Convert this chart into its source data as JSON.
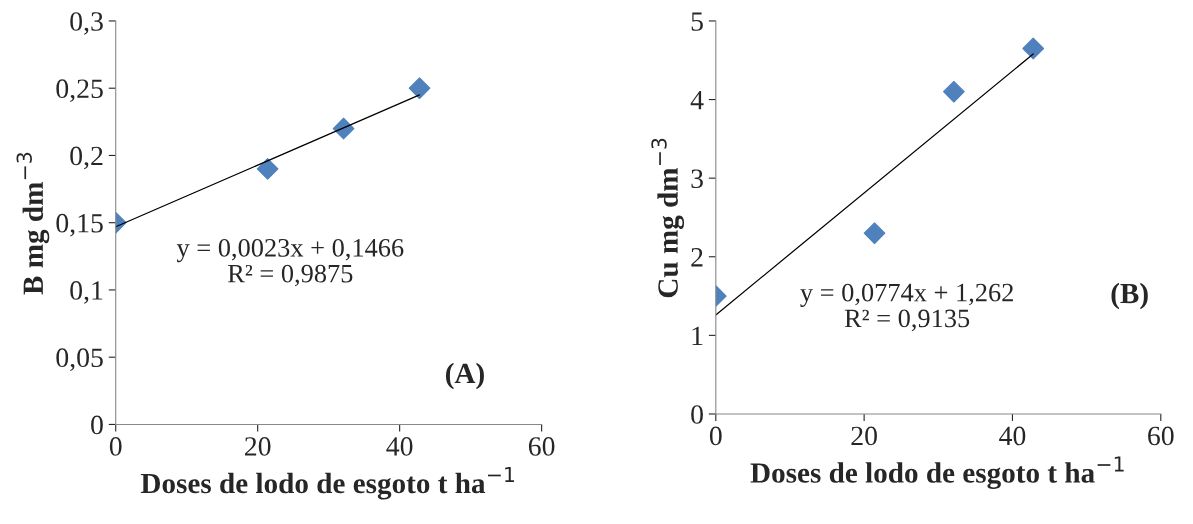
{
  "chart_data": [
    {
      "type": "scatter",
      "xlabel": "Doses de lodo de esgoto t ha$^{−1}$",
      "ylabel": "B mg dm$^{−3}$",
      "series": [
        {
          "color": "#4f81bd",
          "x": [
            0,
            21.4,
            32.1,
            42.8
          ],
          "values": [
            0.15,
            0.19,
            0.22,
            0.25
          ],
          "marker": "diamond"
        },
        {
          "type": "line",
          "color": "#000000",
          "x": [
            0,
            42.8
          ],
          "values": [
            0.147,
            0.245
          ],
          "line_style": "solid"
        }
      ],
      "xlim": [
        0,
        60
      ],
      "xticks": [
        0,
        20,
        40,
        60
      ],
      "ylim": [
        0,
        0.3
      ],
      "yticks": [
        {
          "value": 0,
          "label": "0"
        },
        {
          "value": 0.05,
          "label": "0,05"
        },
        {
          "value": 0.1,
          "label": "0,1"
        },
        {
          "value": 0.15,
          "label": "0,15"
        },
        {
          "value": 0.2,
          "label": "0,2"
        },
        {
          "value": 0.25,
          "label": "0,25"
        },
        {
          "value": 0.3,
          "label": "0,3"
        }
      ],
      "grid": false,
      "annotations": [
        "y = 0,0023x + 0,1466\nR² = 0,9875",
        "(A)"
      ]
    },
    {
      "type": "scatter",
      "xlabel": "Doses de lodo de esgoto t ha$^{−1}$",
      "ylabel": "Cu mg dm$^{−3}$",
      "series": [
        {
          "color": "#4f81bd",
          "x": [
            0,
            21.4,
            32.1,
            42.8
          ],
          "values": [
            1.5,
            2.3,
            4.1,
            4.65
          ],
          "marker": "diamond"
        },
        {
          "type": "line",
          "color": "#000000",
          "x": [
            0,
            42.8
          ],
          "values": [
            1.26,
            4.58
          ],
          "line_style": "solid"
        }
      ],
      "xlim": [
        0,
        60
      ],
      "xticks": [
        0,
        20,
        40,
        60
      ],
      "ylim": [
        0,
        5
      ],
      "yticks": [
        0,
        1,
        2,
        3,
        4,
        5
      ],
      "grid": false,
      "annotations": [
        "y = 0,0774x + 1,262\nR² = 0,9135",
        "(B)"
      ]
    }
  ]
}
